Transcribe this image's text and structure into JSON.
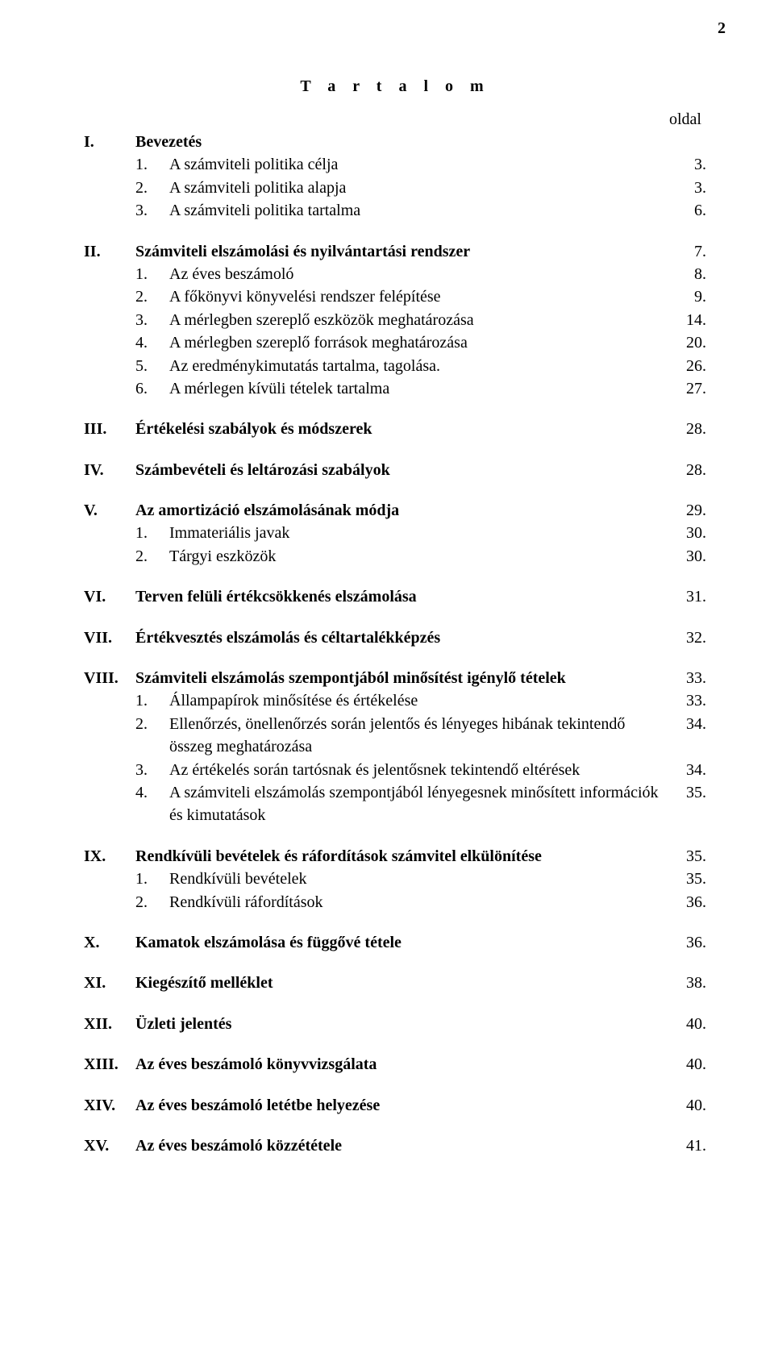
{
  "page_number": "2",
  "title": "T a r t a l o m",
  "page_column_header": "oldal",
  "sections": [
    {
      "roman": "I.",
      "heading": "Bevezetés",
      "page": "",
      "items": [
        {
          "num": "1.",
          "text": "A számviteli politika célja",
          "page": "3."
        },
        {
          "num": "2.",
          "text": "A számviteli politika alapja",
          "page": "3."
        },
        {
          "num": "3.",
          "text": "A számviteli politika tartalma",
          "page": "6."
        }
      ]
    },
    {
      "roman": "II.",
      "heading": "Számviteli elszámolási és nyilvántartási rendszer",
      "page": "7.",
      "items": [
        {
          "num": "1.",
          "text": "Az éves beszámoló",
          "page": "8."
        },
        {
          "num": "2.",
          "text": "A főkönyvi könyvelési rendszer felépítése",
          "page": "9."
        },
        {
          "num": "3.",
          "text": "A mérlegben szereplő eszközök meghatározása",
          "page": "14."
        },
        {
          "num": "4.",
          "text": "A mérlegben szereplő források meghatározása",
          "page": "20."
        },
        {
          "num": "5.",
          "text": "Az eredménykimutatás tartalma, tagolása.",
          "page": "26."
        },
        {
          "num": "6.",
          "text": "A mérlegen kívüli tételek tartalma",
          "page": "27."
        }
      ]
    },
    {
      "roman": "III.",
      "heading": "Értékelési szabályok és módszerek",
      "page": "28.",
      "items": []
    },
    {
      "roman": "IV.",
      "heading": "Számbevételi és leltározási szabályok",
      "page": "28.",
      "items": []
    },
    {
      "roman": "V.",
      "heading": "Az amortizáció elszámolásának módja",
      "page": "29.",
      "items": [
        {
          "num": "1.",
          "text": "Immateriális javak",
          "page": "30."
        },
        {
          "num": "2.",
          "text": "Tárgyi eszközök",
          "page": "30."
        }
      ]
    },
    {
      "roman": "VI.",
      "heading": "Terven felüli értékcsökkenés elszámolása",
      "page": "31.",
      "items": []
    },
    {
      "roman": "VII.",
      "heading": "Értékvesztés elszámolás és céltartalékképzés",
      "page": "32.",
      "items": []
    },
    {
      "roman": "VIII.",
      "heading": "Számviteli elszámolás szempontjából minősítést igénylő tételek",
      "page": "33.",
      "items": [
        {
          "num": "1.",
          "text": "Állampapírok minősítése és értékelése",
          "page": "33."
        },
        {
          "num": "2.",
          "text": "Ellenőrzés, önellenőrzés során jelentős és lényeges hibának tekintendő összeg meghatározása",
          "page": "34."
        },
        {
          "num": "3.",
          "text": "Az értékelés során tartósnak és jelentősnek tekintendő eltérések",
          "page": "34."
        },
        {
          "num": "4.",
          "text": "A számviteli elszámolás szempontjából lényegesnek minősített információk és kimutatások",
          "page": "35."
        }
      ]
    },
    {
      "roman": "IX.",
      "heading": "Rendkívüli bevételek és ráfordítások számvitel elkülönítése",
      "page": "35.",
      "items": [
        {
          "num": "1.",
          "text": "Rendkívüli bevételek",
          "page": "35."
        },
        {
          "num": "2.",
          "text": "Rendkívüli ráfordítások",
          "page": "36."
        }
      ]
    },
    {
      "roman": "X.",
      "heading": "Kamatok elszámolása és függővé tétele",
      "page": "36.",
      "items": []
    },
    {
      "roman": "XI.",
      "heading": "Kiegészítő melléklet",
      "page": "38.",
      "items": []
    },
    {
      "roman": "XII.",
      "heading": "Üzleti jelentés",
      "page": "40.",
      "items": []
    },
    {
      "roman": "XIII.",
      "heading": "Az éves beszámoló könyvvizsgálata",
      "page": "40.",
      "items": []
    },
    {
      "roman": "XIV.",
      "heading": "Az éves beszámoló letétbe helyezése",
      "page": "40.",
      "items": []
    },
    {
      "roman": "XV.",
      "heading": "Az éves beszámoló közzététele",
      "page": "41.",
      "items": []
    }
  ]
}
